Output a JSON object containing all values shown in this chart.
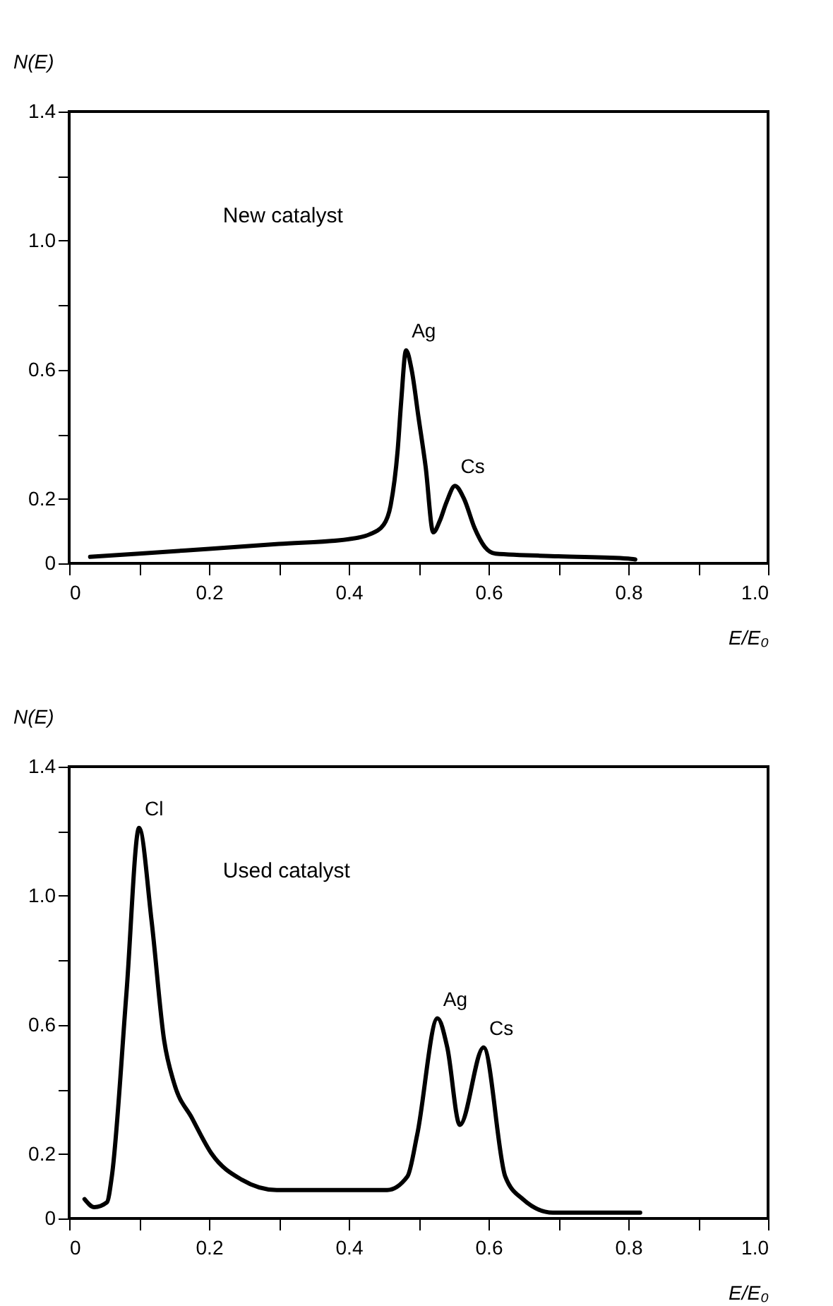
{
  "chart_data": [
    {
      "type": "line",
      "ylabel": "N(E)",
      "xlabel": "E/E₀",
      "xlim": [
        0,
        1
      ],
      "ylim": [
        0,
        1.4
      ],
      "xticks": [
        0,
        {
          "value": 0.1,
          "label": null
        },
        0.2,
        {
          "value": 0.3,
          "label": null
        },
        0.4,
        {
          "value": 0.5,
          "label": null
        },
        0.6,
        {
          "value": 0.7,
          "label": null
        },
        0.8,
        {
          "value": 0.9,
          "label": null
        },
        {
          "value": 1,
          "label": "1.0"
        }
      ],
      "yticks": [
        0,
        0.2,
        {
          "value": 0.4,
          "label": null
        },
        0.6,
        {
          "value": 0.8,
          "label": null
        },
        {
          "value": 1,
          "label": "1.0"
        },
        {
          "value": 1.2,
          "label": null
        },
        1.4
      ],
      "series": [
        {
          "color": "#000000",
          "x": [
            0.03,
            0.1,
            0.2,
            0.3,
            0.4,
            0.43,
            0.45,
            0.46,
            0.47,
            0.475,
            0.482,
            0.49,
            0.5,
            0.51,
            0.521,
            0.53,
            0.54,
            0.552,
            0.565,
            0.58,
            0.595,
            0.61,
            0.7,
            0.8,
            0.81
          ],
          "values": [
            0.02,
            0.03,
            0.045,
            0.06,
            0.075,
            0.09,
            0.12,
            0.18,
            0.35,
            0.5,
            0.66,
            0.6,
            0.45,
            0.3,
            0.096,
            0.13,
            0.19,
            0.24,
            0.2,
            0.11,
            0.05,
            0.03,
            0.022,
            0.015,
            0.012
          ]
        }
      ],
      "annotations": [
        "New catalyst",
        {
          "text": "Ag",
          "x": 0.482,
          "y": 0.66
        },
        {
          "text": "Cs",
          "x": 0.552,
          "y": 0.24
        }
      ]
    },
    {
      "type": "line",
      "ylabel": "N(E)",
      "xlabel": "E/E₀",
      "xlim": [
        0,
        1
      ],
      "ylim": [
        0,
        1.4
      ],
      "xticks": [
        0,
        {
          "value": 0.1,
          "label": null
        },
        0.2,
        {
          "value": 0.3,
          "label": null
        },
        0.4,
        {
          "value": 0.5,
          "label": null
        },
        0.6,
        {
          "value": 0.7,
          "label": null
        },
        0.8,
        {
          "value": 0.9,
          "label": null
        },
        {
          "value": 1,
          "label": "1.0"
        }
      ],
      "yticks": [
        0,
        0.2,
        {
          "value": 0.4,
          "label": null
        },
        0.6,
        {
          "value": 0.8,
          "label": null
        },
        {
          "value": 1,
          "label": "1.0"
        },
        {
          "value": 1.2,
          "label": null
        },
        1.4
      ],
      "series": [
        {
          "color": "#000000",
          "x": [
            0.022,
            0.036,
            0.054,
            0.061,
            0.082,
            0.1,
            0.118,
            0.136,
            0.15,
            0.176,
            0.204,
            0.247,
            0.297,
            0.455,
            0.484,
            0.498,
            0.527,
            0.541,
            0.559,
            0.593,
            0.624,
            0.649,
            0.692,
            0.817
          ],
          "values": [
            0.06,
            0.035,
            0.05,
            0.13,
            0.7,
            1.21,
            0.92,
            0.55,
            0.42,
            0.31,
            0.2,
            0.12,
            0.088,
            0.088,
            0.13,
            0.26,
            0.62,
            0.53,
            0.29,
            0.53,
            0.13,
            0.06,
            0.018,
            0.018
          ]
        }
      ],
      "annotations": [
        "Used catalyst",
        {
          "text": "Cl",
          "x": 0.1,
          "y": 1.21
        },
        {
          "text": "Ag",
          "x": 0.527,
          "y": 0.62
        },
        {
          "text": "Cs",
          "x": 0.593,
          "y": 0.53
        }
      ]
    }
  ]
}
